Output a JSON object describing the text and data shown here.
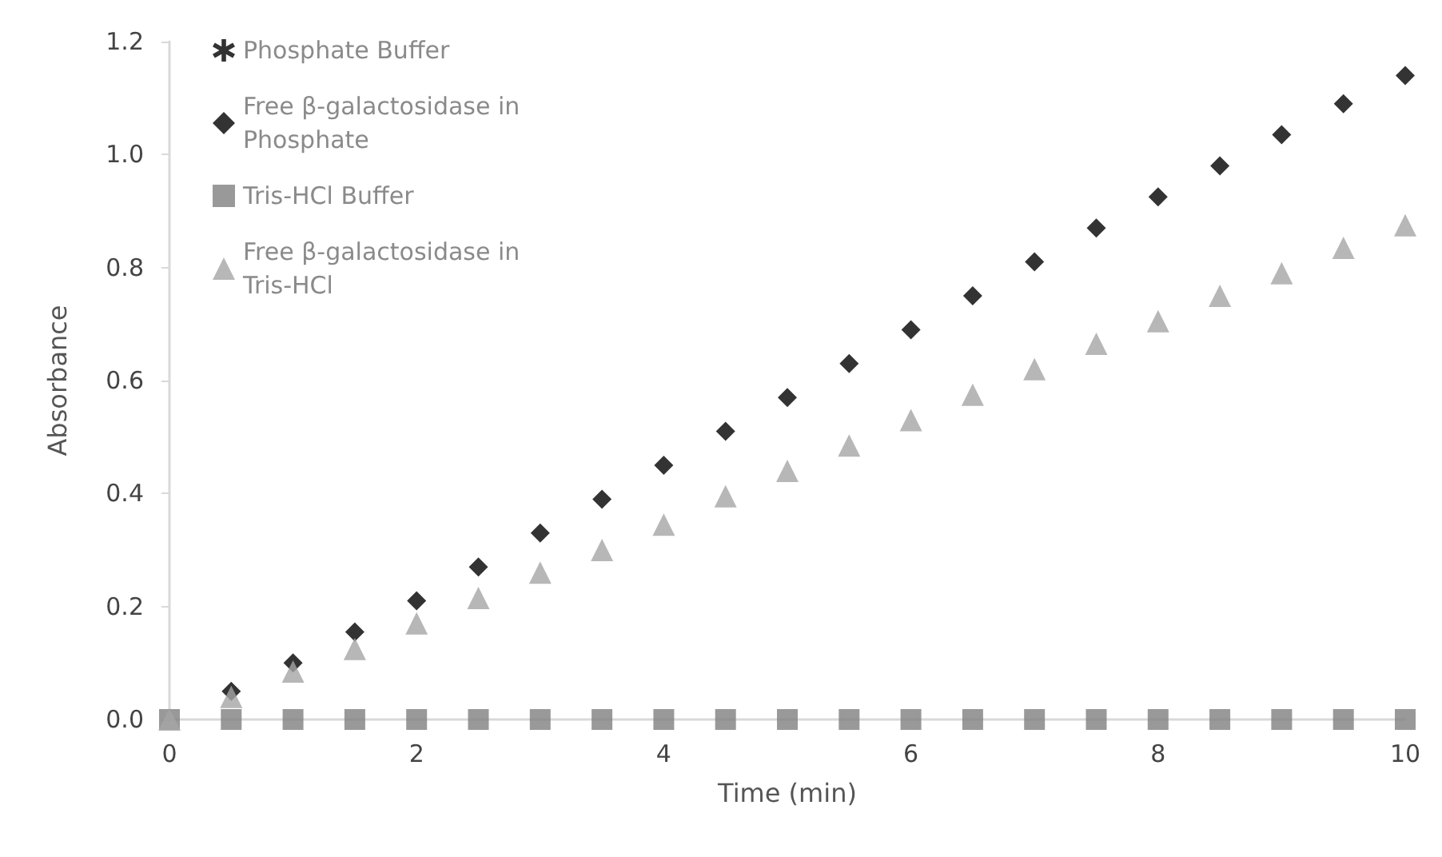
{
  "chart_data": {
    "type": "scatter",
    "xlabel": "Time (min)",
    "ylabel": "Absorbance",
    "x": [
      0,
      0.5,
      1,
      1.5,
      2,
      2.5,
      3,
      3.5,
      4,
      4.5,
      5,
      5.5,
      6,
      6.5,
      7,
      7.5,
      8,
      8.5,
      9,
      9.5,
      10
    ],
    "xlim": [
      0,
      10
    ],
    "xticks": [
      0,
      2,
      4,
      6,
      8,
      10
    ],
    "ylim": [
      0,
      1.2
    ],
    "yticks": [
      {
        "value": 0,
        "label": "0.0"
      },
      {
        "value": 0.2,
        "label": "0.2"
      },
      {
        "value": 0.4,
        "label": "0.4"
      },
      {
        "value": 0.6,
        "label": "0.6"
      },
      {
        "value": 0.8,
        "label": "0.8"
      },
      {
        "value": 1,
        "label": "1.0"
      },
      {
        "value": 1.2,
        "label": "1.2"
      }
    ],
    "grid": false,
    "legend": "top left",
    "series": [
      {
        "name": "Phosphate Buffer",
        "color": "#000000",
        "marker": "cross",
        "values": [
          null,
          null,
          null,
          null,
          null,
          null,
          null,
          null,
          null,
          null,
          null,
          null,
          null,
          null,
          null,
          null,
          null,
          null,
          null,
          null,
          null
        ]
      },
      {
        "name": "Free β-galactosidase in Phosphate",
        "color": "#000000",
        "marker": "diamond",
        "values": [
          null,
          0.05,
          0.1,
          0.155,
          0.21,
          0.27,
          0.33,
          0.39,
          0.45,
          0.51,
          0.57,
          0.63,
          0.69,
          0.75,
          0.81,
          0.87,
          0.925,
          0.98,
          1.035,
          1.09,
          1.14
        ]
      },
      {
        "name": "Tris-HCl Buffer",
        "color": "#7f7f7f",
        "marker": "square",
        "values": [
          0,
          0,
          0,
          0,
          0,
          0,
          0,
          0,
          0,
          0,
          0,
          0,
          0,
          0,
          0,
          0,
          0,
          0,
          0,
          0,
          0
        ]
      },
      {
        "name": "Free β-galactosidase in Tris-HCl",
        "color": "#a5a5a5",
        "marker": "triangle",
        "values": [
          0,
          0.04,
          0.085,
          0.125,
          0.17,
          0.215,
          0.26,
          0.3,
          0.345,
          0.395,
          0.44,
          0.485,
          0.53,
          0.575,
          0.62,
          0.665,
          0.705,
          0.75,
          0.79,
          0.835,
          0.875
        ]
      }
    ]
  }
}
